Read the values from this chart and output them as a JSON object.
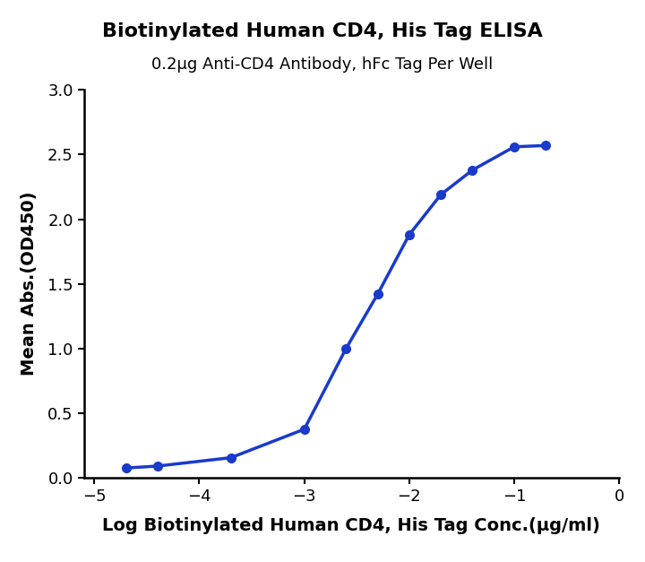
{
  "title": "Biotinylated Human CD4, His Tag ELISA",
  "subtitle": "0.2μg Anti-CD4 Antibody, hFc Tag Per Well",
  "xlabel": "Log Biotinylated Human CD4, His Tag Conc.(μg/ml)",
  "ylabel": "Mean Abs.(OD450)",
  "x_data": [
    -4.699,
    -4.398,
    -3.699,
    -3.0,
    -2.602,
    -2.301,
    -2.0,
    -1.699,
    -1.398,
    -1.0,
    -0.699
  ],
  "y_data": [
    0.075,
    0.09,
    0.155,
    0.375,
    1.0,
    1.42,
    1.88,
    2.19,
    2.38,
    2.56,
    2.57
  ],
  "xlim": [
    -5.1,
    -0.4
  ],
  "ylim": [
    0.0,
    3.0
  ],
  "xticks": [
    -5,
    -4,
    -3,
    -2,
    -1,
    0
  ],
  "yticks": [
    0.0,
    0.5,
    1.0,
    1.5,
    2.0,
    2.5,
    3.0
  ],
  "line_color": "#1a3acc",
  "marker_color": "#1a3acc",
  "marker_size": 7,
  "line_width": 2.5,
  "title_fontsize": 16,
  "subtitle_fontsize": 13,
  "axis_label_fontsize": 14,
  "tick_fontsize": 13,
  "background_color": "#ffffff",
  "fig_width": 7.2,
  "fig_height": 6.27
}
